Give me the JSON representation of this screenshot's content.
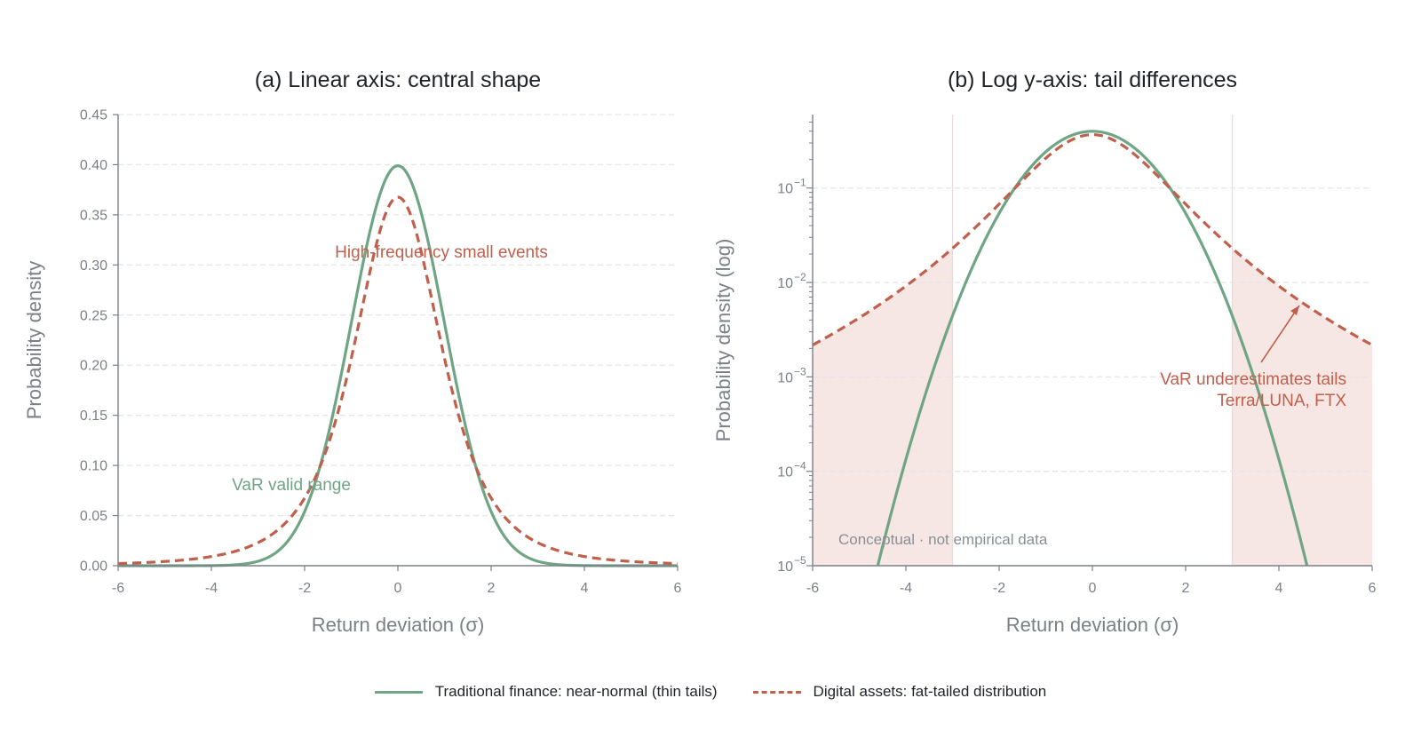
{
  "chart_data": [
    {
      "type": "line",
      "title": "(a) Linear axis: central shape",
      "xlabel": "Return deviation (σ)",
      "ylabel": "Probability density",
      "xlim": [
        -6,
        6
      ],
      "ylim": [
        0,
        0.45
      ],
      "yscale": "linear",
      "grid": "horizontal dashed",
      "xticks": [
        "-6",
        "-4",
        "-2",
        "0",
        "2",
        "4",
        "6"
      ],
      "yticks": [
        "0.00",
        "0.05",
        "0.10",
        "0.15",
        "0.20",
        "0.25",
        "0.30",
        "0.35",
        "0.40",
        "0.45"
      ],
      "series": [
        {
          "name": "Traditional finance: near-normal (thin tails)",
          "style": "solid",
          "color": "#6fa585",
          "x": [
            -6,
            -5,
            -4,
            -3,
            -2.5,
            -2,
            -1.5,
            -1,
            -0.5,
            0,
            0.5,
            1,
            1.5,
            2,
            2.5,
            3,
            4,
            5,
            6
          ],
          "values": [
            0.0,
            0.0,
            0.0001,
            0.0044,
            0.0175,
            0.054,
            0.1295,
            0.242,
            0.352,
            0.399,
            0.352,
            0.242,
            0.1295,
            0.054,
            0.0175,
            0.0044,
            0.0001,
            0.0,
            0.0
          ]
        },
        {
          "name": "Digital assets: fat-tailed distribution",
          "style": "dashed",
          "color": "#c0604c",
          "x": [
            -6,
            -5,
            -4,
            -3,
            -2.5,
            -2,
            -1.5,
            -1,
            -0.5,
            0,
            0.5,
            1,
            1.5,
            2,
            2.5,
            3,
            4,
            5,
            6
          ],
          "values": [
            0.0022,
            0.0042,
            0.0091,
            0.023,
            0.038,
            0.063,
            0.108,
            0.183,
            0.304,
            0.368,
            0.304,
            0.183,
            0.108,
            0.063,
            0.038,
            0.023,
            0.0091,
            0.0042,
            0.0022
          ]
        }
      ],
      "annotations": [
        {
          "text": "High-frequency small events",
          "x": 0.9,
          "y": 0.31,
          "color": "#c0604c"
        },
        {
          "text": "VaR valid range",
          "x": -2.3,
          "y": 0.078,
          "color": "#6fa585"
        }
      ]
    },
    {
      "type": "line",
      "title": "(b) Log y-axis: tail differences",
      "xlabel": "Return deviation (σ)",
      "ylabel": "Probability density (log)",
      "xlim": [
        -6,
        6
      ],
      "ylim": [
        1e-05,
        0.6
      ],
      "yscale": "log",
      "grid": "horizontal dashed",
      "xticks": [
        "-6",
        "-4",
        "-2",
        "0",
        "2",
        "4",
        "6"
      ],
      "yticks": [
        {
          "base": "10",
          "exp": "−5",
          "value": 1e-05
        },
        {
          "base": "10",
          "exp": "−4",
          "value": 0.0001
        },
        {
          "base": "10",
          "exp": "−3",
          "value": 0.001
        },
        {
          "base": "10",
          "exp": "−2",
          "value": 0.01
        },
        {
          "base": "10",
          "exp": "−1",
          "value": 0.1
        }
      ],
      "shaded_tails": [
        [
          -6,
          -3
        ],
        [
          3,
          6
        ]
      ],
      "series": [
        {
          "name": "Traditional finance: near-normal (thin tails)",
          "style": "solid",
          "color": "#6fa585"
        },
        {
          "name": "Digital assets: fat-tailed distribution",
          "style": "dashed",
          "color": "#c0604c"
        }
      ],
      "annotations": [
        {
          "text": "VaR underestimates tails",
          "color": "#c0604c"
        },
        {
          "text": "Terra/LUNA, FTX",
          "color": "#c0604c"
        },
        {
          "text": "Conceptual · not empirical data",
          "color": "#8a8f96"
        }
      ]
    }
  ],
  "legend": {
    "solid_label": "Traditional finance: near-normal (thin tails)",
    "dashed_label": "Digital assets: fat-tailed distribution"
  }
}
